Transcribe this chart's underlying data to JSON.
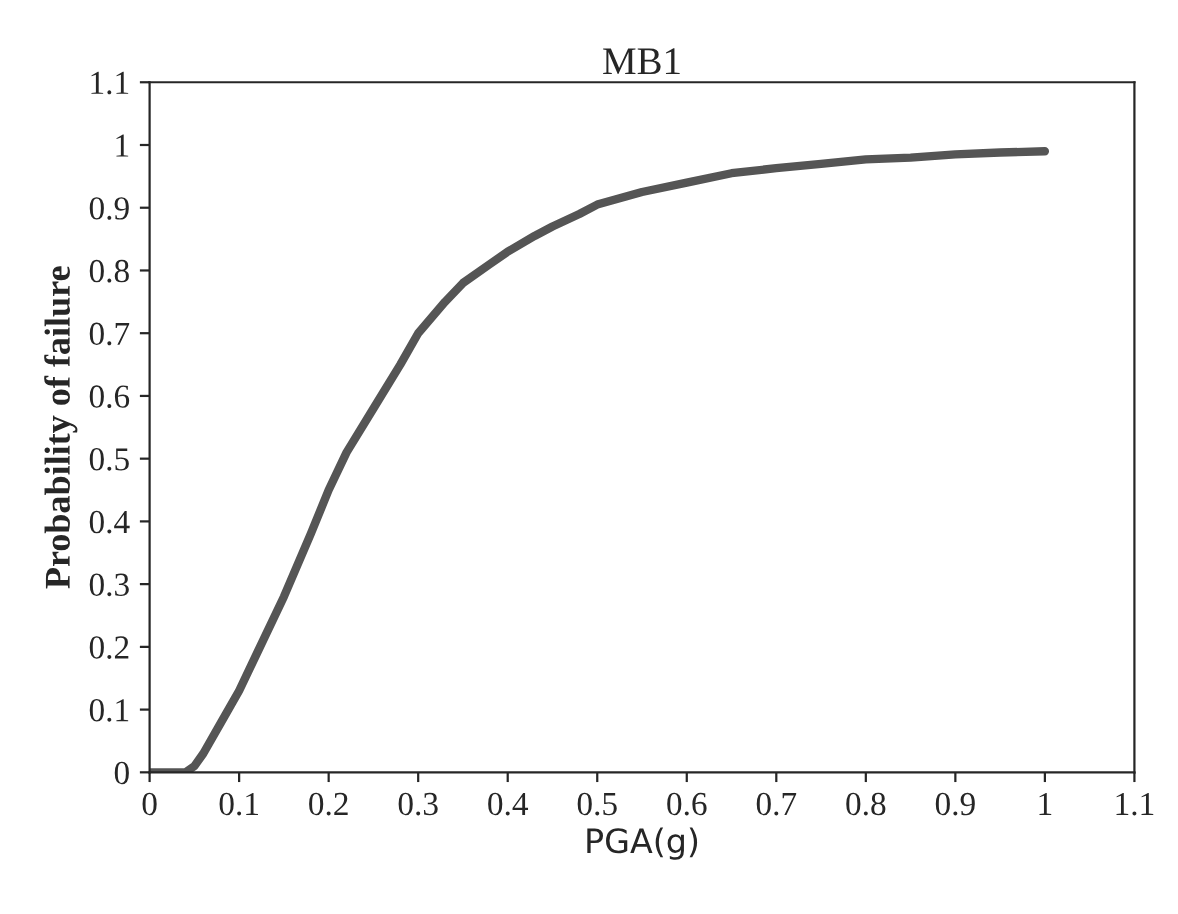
{
  "chart_data": {
    "type": "line",
    "title": "MB1",
    "xlabel": "PGA(g)",
    "ylabel": "Probability of failure",
    "x": [
      0,
      0.02,
      0.04,
      0.05,
      0.06,
      0.08,
      0.1,
      0.12,
      0.15,
      0.18,
      0.2,
      0.22,
      0.25,
      0.28,
      0.3,
      0.33,
      0.35,
      0.38,
      0.4,
      0.43,
      0.45,
      0.48,
      0.5,
      0.55,
      0.6,
      0.65,
      0.7,
      0.75,
      0.8,
      0.85,
      0.9,
      0.95,
      1.0
    ],
    "series": [
      {
        "color": "#555555",
        "values": [
          0,
          0,
          0,
          0.01,
          0.03,
          0.08,
          0.13,
          0.19,
          0.28,
          0.38,
          0.45,
          0.51,
          0.58,
          0.65,
          0.7,
          0.75,
          0.78,
          0.81,
          0.83,
          0.855,
          0.87,
          0.89,
          0.905,
          0.925,
          0.94,
          0.955,
          0.963,
          0.97,
          0.977,
          0.98,
          0.985,
          0.988,
          0.99
        ]
      }
    ],
    "xlim": [
      0,
      1.1
    ],
    "xticks": [
      0,
      0.1,
      0.2,
      0.3,
      0.4,
      0.5,
      0.6,
      0.7,
      0.8,
      0.9,
      1,
      1.1
    ],
    "ylim": [
      0,
      1.1
    ],
    "yticks": [
      0,
      0.1,
      0.2,
      0.3,
      0.4,
      0.5,
      0.6,
      0.7,
      0.8,
      0.9,
      1,
      1.1
    ],
    "grid": false,
    "legend": false,
    "marker": "none",
    "line_style": "solid"
  }
}
